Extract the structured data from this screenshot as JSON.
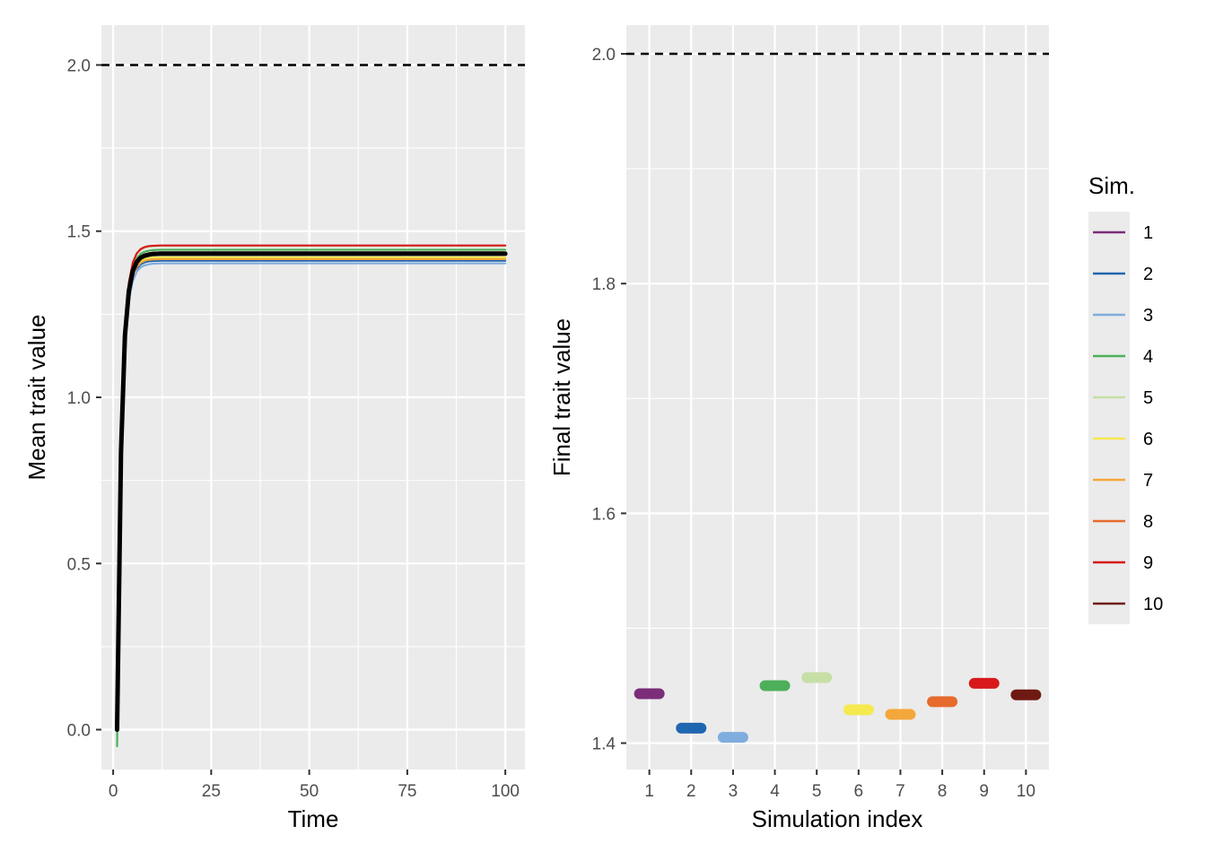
{
  "chart_data": [
    {
      "type": "line",
      "xlabel": "Time",
      "ylabel": "Mean trait value",
      "xlim": [
        -3,
        105
      ],
      "ylim": [
        -0.12,
        2.12
      ],
      "xticks": [
        0,
        25,
        50,
        75,
        100
      ],
      "xtick_labels": [
        "0",
        "25",
        "50",
        "75",
        "100"
      ],
      "yticks": [
        0.0,
        0.5,
        1.0,
        1.5,
        2.0
      ],
      "ytick_labels": [
        "0.0",
        "0.5",
        "1.0",
        "1.5",
        "2.0"
      ],
      "reference_line": {
        "y": 2.0,
        "style": "dashed",
        "color": "#000000"
      },
      "grid": true,
      "x": [
        1,
        2,
        3,
        4,
        5,
        6,
        7,
        8,
        9,
        10,
        12,
        15,
        20,
        30,
        50,
        75,
        100
      ],
      "series": [
        {
          "name": "1",
          "color": "#7B2D79",
          "values": [
            0.0,
            0.84,
            1.19,
            1.325,
            1.385,
            1.412,
            1.424,
            1.43,
            1.433,
            1.435,
            1.436,
            1.436,
            1.436,
            1.436,
            1.436,
            1.436,
            1.436
          ]
        },
        {
          "name": "2",
          "color": "#1F66B0",
          "values": [
            0.0,
            0.82,
            1.17,
            1.3,
            1.36,
            1.387,
            1.4,
            1.406,
            1.409,
            1.41,
            1.411,
            1.411,
            1.411,
            1.411,
            1.411,
            1.411,
            1.411
          ]
        },
        {
          "name": "3",
          "color": "#7FADDD",
          "values": [
            -0.02,
            0.8,
            1.16,
            1.29,
            1.35,
            1.378,
            1.391,
            1.397,
            1.4,
            1.402,
            1.403,
            1.403,
            1.403,
            1.403,
            1.403,
            1.403,
            1.403
          ]
        },
        {
          "name": "4",
          "color": "#4DAF5A",
          "values": [
            -0.05,
            0.82,
            1.19,
            1.33,
            1.39,
            1.418,
            1.432,
            1.438,
            1.441,
            1.443,
            1.444,
            1.444,
            1.444,
            1.444,
            1.444,
            1.444,
            1.444
          ]
        },
        {
          "name": "5",
          "color": "#C6DFA6",
          "values": [
            0.0,
            0.85,
            1.21,
            1.345,
            1.405,
            1.432,
            1.444,
            1.45,
            1.453,
            1.454,
            1.455,
            1.455,
            1.455,
            1.455,
            1.455,
            1.455,
            1.455
          ]
        },
        {
          "name": "6",
          "color": "#F5E94F",
          "values": [
            0.0,
            0.83,
            1.18,
            1.31,
            1.37,
            1.397,
            1.41,
            1.416,
            1.419,
            1.42,
            1.421,
            1.421,
            1.421,
            1.421,
            1.421,
            1.421,
            1.421
          ]
        },
        {
          "name": "7",
          "color": "#F4A73A",
          "values": [
            0.0,
            0.83,
            1.17,
            1.305,
            1.365,
            1.392,
            1.405,
            1.411,
            1.414,
            1.415,
            1.416,
            1.416,
            1.416,
            1.416,
            1.416,
            1.416,
            1.416
          ]
        },
        {
          "name": "8",
          "color": "#E66B2C",
          "values": [
            0.0,
            0.84,
            1.19,
            1.32,
            1.38,
            1.408,
            1.421,
            1.427,
            1.43,
            1.431,
            1.432,
            1.432,
            1.432,
            1.432,
            1.432,
            1.432,
            1.432
          ]
        },
        {
          "name": "9",
          "color": "#D7191C",
          "values": [
            0.02,
            0.86,
            1.21,
            1.345,
            1.405,
            1.433,
            1.446,
            1.452,
            1.455,
            1.456,
            1.457,
            1.457,
            1.457,
            1.457,
            1.457,
            1.457,
            1.457
          ]
        },
        {
          "name": "10",
          "color": "#6E1A12",
          "values": [
            0.0,
            0.84,
            1.19,
            1.325,
            1.385,
            1.412,
            1.424,
            1.43,
            1.433,
            1.435,
            1.436,
            1.436,
            1.436,
            1.436,
            1.436,
            1.436,
            1.436
          ]
        },
        {
          "color": "#000000",
          "values": [
            0.0,
            0.835,
            1.185,
            1.32,
            1.38,
            1.407,
            1.42,
            1.426,
            1.429,
            1.431,
            1.432,
            1.432,
            1.432,
            1.432,
            1.432,
            1.432,
            1.432
          ]
        }
      ]
    },
    {
      "type": "scatter",
      "xlabel": "Simulation index",
      "ylabel": "Final trait value",
      "xlim": [
        0.45,
        10.55
      ],
      "ylim": [
        1.377,
        2.025
      ],
      "xticks": [
        1,
        2,
        3,
        4,
        5,
        6,
        7,
        8,
        9,
        10
      ],
      "xtick_labels": [
        "1",
        "2",
        "3",
        "4",
        "5",
        "6",
        "7",
        "8",
        "9",
        "10"
      ],
      "yticks": [
        1.4,
        1.6,
        1.8,
        2.0
      ],
      "ytick_labels": [
        "1.4",
        "1.6",
        "1.8",
        "2.0"
      ],
      "reference_line": {
        "y": 2.0,
        "style": "dashed",
        "color": "#000000"
      },
      "grid": true,
      "x": [
        1,
        2,
        3,
        4,
        5,
        6,
        7,
        8,
        9,
        10
      ],
      "values": [
        1.443,
        1.413,
        1.405,
        1.45,
        1.457,
        1.429,
        1.425,
        1.436,
        1.452,
        1.442
      ],
      "colors": [
        "#7B2D79",
        "#1F66B0",
        "#7FADDD",
        "#4DAF5A",
        "#C6DFA6",
        "#F5E94F",
        "#F4A73A",
        "#E66B2C",
        "#D7191C",
        "#6E1A12"
      ]
    }
  ],
  "legend": {
    "title": "Sim.",
    "position": "right",
    "items": [
      {
        "label": "1",
        "color": "#7B2D79"
      },
      {
        "label": "2",
        "color": "#1F66B0"
      },
      {
        "label": "3",
        "color": "#7FADDD"
      },
      {
        "label": "4",
        "color": "#4DAF5A"
      },
      {
        "label": "5",
        "color": "#C6DFA6"
      },
      {
        "label": "6",
        "color": "#F5E94F"
      },
      {
        "label": "7",
        "color": "#F4A73A"
      },
      {
        "label": "8",
        "color": "#E66B2C"
      },
      {
        "label": "9",
        "color": "#D7191C"
      },
      {
        "label": "10",
        "color": "#6E1A12"
      }
    ]
  },
  "panel_background": "#EBEBEB",
  "grid_color": "#FFFFFF"
}
